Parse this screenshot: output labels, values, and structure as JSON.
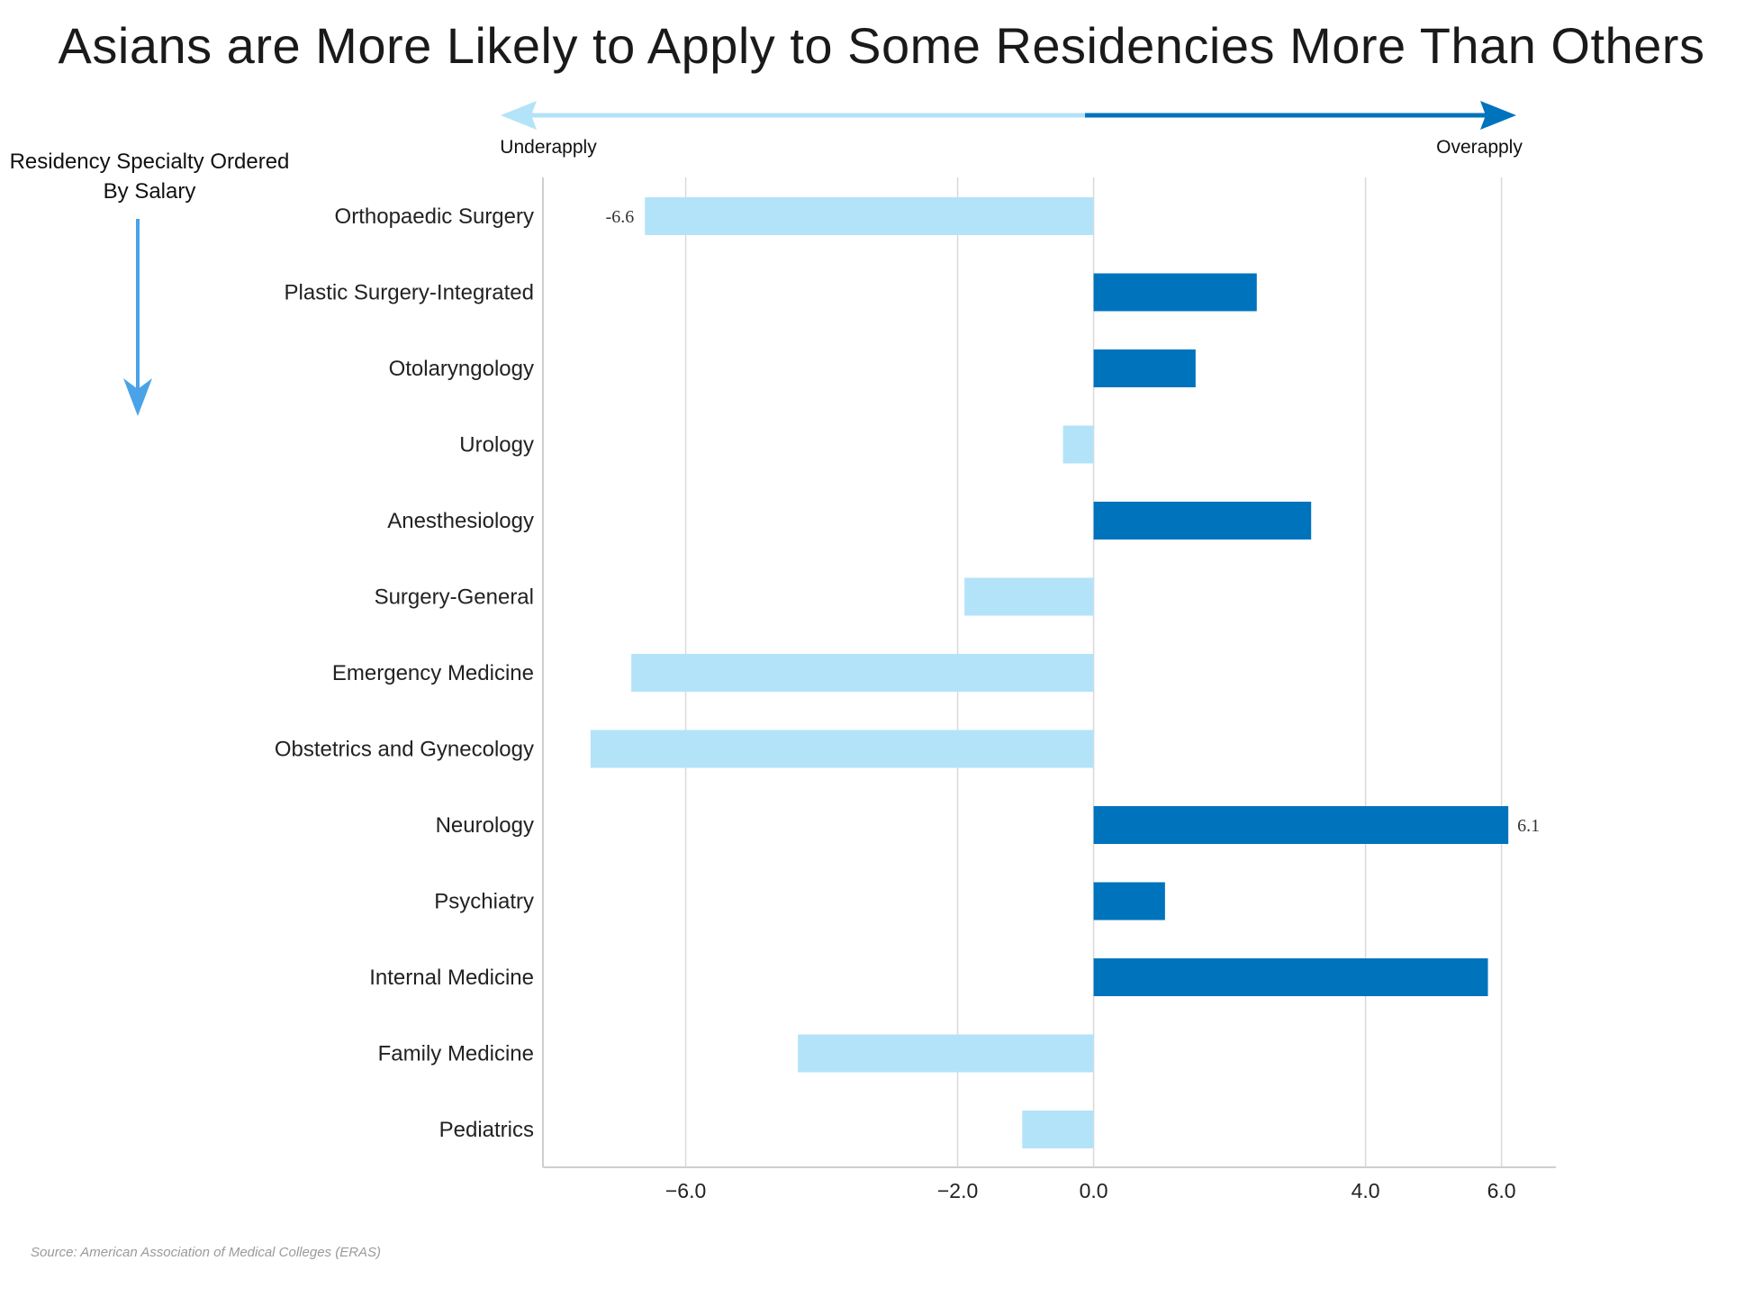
{
  "title": "Asians are More Likely to Apply to Some Residencies More Than Others",
  "side_note": [
    "Residency Specialty Ordered",
    "By Salary"
  ],
  "direction_labels": {
    "left": "Underapply",
    "right": "Overapply"
  },
  "source": "Source: American Association of Medical Colleges (ERAS)",
  "colors": {
    "positive": "#0073bd",
    "negative": "#b3e3f9",
    "arrow_left": "#b3e3f9",
    "arrow_right": "#0073bd",
    "side_arrow": "#4aa3e8"
  },
  "chart_data": {
    "type": "bar",
    "orientation": "horizontal",
    "title": "Asians are More Likely to Apply to Some Residencies More Than Others",
    "categories": [
      "Orthopaedic Surgery",
      "Plastic Surgery-Integrated",
      "Otolaryngology",
      "Urology",
      "Anesthesiology",
      "Surgery-General",
      "Emergency Medicine",
      "Obstetrics and Gynecology",
      "Neurology",
      "Psychiatry",
      "Internal Medicine",
      "Family Medicine",
      "Pediatrics"
    ],
    "values": [
      -6.6,
      2.4,
      1.5,
      -0.45,
      3.2,
      -1.9,
      -6.8,
      -7.4,
      6.1,
      1.05,
      5.8,
      -4.35,
      -1.05
    ],
    "data_labels": [
      {
        "category": "Orthopaedic Surgery",
        "text": "-6.6"
      },
      {
        "category": "Neurology",
        "text": "6.1"
      }
    ],
    "xlim": [
      -8.1,
      6.8
    ],
    "xticks": [
      -6.0,
      -2.0,
      0.0,
      4.0,
      6.0
    ],
    "xtick_labels": [
      "−6.0",
      "−2.0",
      "0.0",
      "4.0",
      "6.0"
    ],
    "grid": "vertical",
    "xlabel": "",
    "ylabel": ""
  }
}
